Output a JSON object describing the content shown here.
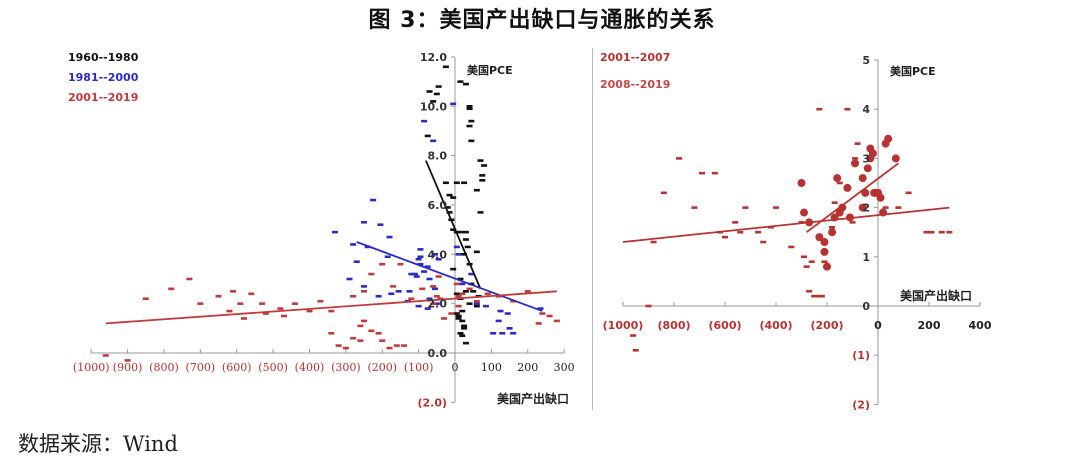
{
  "title": "图 3：美国产出缺口与通胀的关系",
  "source": "数据来源：Wind",
  "colors": {
    "black_series": "#111111",
    "blue_series": "#2b2bc8",
    "red_series": "#c23b3b",
    "red_tick_labels": "#b83232",
    "axis": "#999999"
  },
  "chart_data": [
    {
      "type": "scatter",
      "title": "",
      "xlabel": "美国产出缺口",
      "ylabel": "美国PCE",
      "xlim": [
        -1000,
        300
      ],
      "ylim": [
        -2.0,
        12.0
      ],
      "x_ticks": [
        "(1000)",
        "(900)",
        "(800)",
        "(700)",
        "(600)",
        "(500)",
        "(400)",
        "(300)",
        "(200)",
        "(100)",
        "0",
        "100",
        "200",
        "300"
      ],
      "y_ticks": [
        "12.0",
        "10.0",
        "8.0",
        "6.0",
        "4.0",
        "2.0",
        "0.0",
        "(2.0)"
      ],
      "legend_position": "top-left",
      "series": [
        {
          "name": "1960--1980",
          "color": "#111111",
          "marker": "dash",
          "points": [
            [
              -25,
              11.6
            ],
            [
              30,
              10.9
            ],
            [
              15,
              11.0
            ],
            [
              -45,
              10.8
            ],
            [
              -70,
              10.6
            ],
            [
              -50,
              10.5
            ],
            [
              -60,
              10.2
            ],
            [
              40,
              10.0
            ],
            [
              40,
              9.9
            ],
            [
              45,
              9.4
            ],
            [
              40,
              9.2
            ],
            [
              45,
              8.6
            ],
            [
              -75,
              8.8
            ],
            [
              70,
              7.8
            ],
            [
              80,
              7.6
            ],
            [
              75,
              7.2
            ],
            [
              75,
              7.0
            ],
            [
              5,
              6.9
            ],
            [
              -25,
              6.9
            ],
            [
              25,
              6.9
            ],
            [
              60,
              6.6
            ],
            [
              -15,
              6.4
            ],
            [
              -5,
              6.3
            ],
            [
              -20,
              5.9
            ],
            [
              -15,
              5.7
            ],
            [
              70,
              5.7
            ],
            [
              -10,
              5.4
            ],
            [
              -5,
              5.0
            ],
            [
              5,
              4.9
            ],
            [
              15,
              4.9
            ],
            [
              30,
              4.9
            ],
            [
              30,
              4.6
            ],
            [
              35,
              4.3
            ],
            [
              25,
              4.0
            ],
            [
              60,
              4.1
            ],
            [
              40,
              3.6
            ],
            [
              45,
              2.8
            ],
            [
              30,
              2.5
            ],
            [
              5,
              2.4
            ],
            [
              15,
              2.2
            ],
            [
              40,
              2.0
            ],
            [
              60,
              1.9
            ],
            [
              10,
              1.5
            ],
            [
              20,
              1.3
            ],
            [
              25,
              1.1
            ],
            [
              15,
              0.8
            ],
            [
              20,
              0.7
            ],
            [
              25,
              1.0
            ],
            [
              10,
              1.4
            ],
            [
              5,
              1.6
            ],
            [
              20,
              1.7
            ],
            [
              30,
              0.4
            ],
            [
              50,
              2.5
            ],
            [
              65,
              2.3
            ],
            [
              15,
              3.0
            ],
            [
              -5,
              3.4
            ]
          ],
          "trendline": {
            "x1": -80,
            "y1": 7.8,
            "x2": 70,
            "y2": 2.6
          }
        },
        {
          "name": "1981--2000",
          "color": "#2b2bc8",
          "marker": "dash",
          "points": [
            [
              -5,
              10.1
            ],
            [
              -85,
              9.4
            ],
            [
              -60,
              8.6
            ],
            [
              -225,
              6.2
            ],
            [
              -250,
              5.3
            ],
            [
              -205,
              5.2
            ],
            [
              -330,
              4.9
            ],
            [
              -180,
              4.7
            ],
            [
              -280,
              4.4
            ],
            [
              -240,
              4.3
            ],
            [
              -185,
              3.9
            ],
            [
              -270,
              3.7
            ],
            [
              -100,
              3.8
            ],
            [
              -55,
              4.0
            ],
            [
              -45,
              3.8
            ],
            [
              -95,
              3.6
            ],
            [
              -75,
              3.5
            ],
            [
              -110,
              3.2
            ],
            [
              -120,
              3.2
            ],
            [
              -105,
              3.1
            ],
            [
              -290,
              3.0
            ],
            [
              -250,
              2.7
            ],
            [
              -175,
              2.4
            ],
            [
              -155,
              2.5
            ],
            [
              -125,
              2.5
            ],
            [
              -210,
              2.3
            ],
            [
              -130,
              2.1
            ],
            [
              -100,
              1.9
            ],
            [
              -75,
              1.8
            ],
            [
              -50,
              2.0
            ],
            [
              -70,
              2.2
            ],
            [
              5,
              4.3
            ],
            [
              10,
              4.0
            ],
            [
              60,
              2.0
            ],
            [
              85,
              1.9
            ],
            [
              125,
              1.7
            ],
            [
              145,
              1.6
            ],
            [
              120,
              1.3
            ],
            [
              150,
              1.0
            ],
            [
              160,
              0.8
            ],
            [
              130,
              0.8
            ],
            [
              105,
              0.8
            ],
            [
              235,
              1.8
            ],
            [
              -95,
              4.2
            ],
            [
              -95,
              3.9
            ],
            [
              -85,
              3.3
            ],
            [
              -70,
              3.0
            ],
            [
              -55,
              2.6
            ],
            [
              20,
              2.8
            ],
            [
              45,
              3.2
            ]
          ],
          "trendline": {
            "x1": -270,
            "y1": 4.5,
            "x2": 240,
            "y2": 1.7
          }
        },
        {
          "name": "2001--2019",
          "color": "#c23b3b",
          "marker": "dash",
          "points": [
            [
              -960,
              -0.1
            ],
            [
              -900,
              -0.3
            ],
            [
              -780,
              2.6
            ],
            [
              -850,
              2.2
            ],
            [
              -730,
              3.0
            ],
            [
              -700,
              2.0
            ],
            [
              -650,
              2.3
            ],
            [
              -610,
              2.5
            ],
            [
              -560,
              2.4
            ],
            [
              -590,
              2.0
            ],
            [
              -620,
              1.7
            ],
            [
              -580,
              1.4
            ],
            [
              -530,
              2.0
            ],
            [
              -520,
              1.6
            ],
            [
              -480,
              1.8
            ],
            [
              -470,
              1.5
            ],
            [
              -440,
              2.0
            ],
            [
              -400,
              1.7
            ],
            [
              -370,
              2.1
            ],
            [
              -340,
              1.7
            ],
            [
              -280,
              2.3
            ],
            [
              -250,
              2.5
            ],
            [
              -230,
              3.2
            ],
            [
              -200,
              3.6
            ],
            [
              -150,
              3.6
            ],
            [
              -170,
              2.7
            ],
            [
              -120,
              2.2
            ],
            [
              -90,
              2.6
            ],
            [
              -60,
              2.7
            ],
            [
              -45,
              3.1
            ],
            [
              -250,
              1.3
            ],
            [
              -230,
              0.9
            ],
            [
              -210,
              0.8
            ],
            [
              -280,
              0.6
            ],
            [
              -260,
              0.5
            ],
            [
              -200,
              0.5
            ],
            [
              -160,
              0.3
            ],
            [
              -140,
              0.3
            ],
            [
              -180,
              0.2
            ],
            [
              -300,
              0.2
            ],
            [
              -260,
              1.1
            ],
            [
              -340,
              0.8
            ],
            [
              -320,
              0.3
            ],
            [
              -60,
              2.0
            ],
            [
              -40,
              2.2
            ],
            [
              10,
              2.3
            ],
            [
              20,
              2.4
            ],
            [
              5,
              2.8
            ],
            [
              40,
              2.6
            ],
            [
              60,
              2.1
            ],
            [
              90,
              2.4
            ],
            [
              120,
              2.3
            ],
            [
              160,
              2.1
            ],
            [
              200,
              2.5
            ],
            [
              240,
              1.6
            ],
            [
              260,
              1.5
            ],
            [
              280,
              1.3
            ],
            [
              230,
              1.2
            ],
            [
              10,
              1.9
            ],
            [
              -10,
              1.6
            ],
            [
              -30,
              1.4
            ],
            [
              -50,
              2.3
            ]
          ],
          "trendline": {
            "x1": -960,
            "y1": 1.2,
            "x2": 280,
            "y2": 2.5
          }
        }
      ]
    },
    {
      "type": "scatter",
      "title": "",
      "xlabel": "美国产出缺口",
      "ylabel": "美国PCE",
      "xlim": [
        -1000,
        400
      ],
      "ylim": [
        -2,
        5
      ],
      "x_ticks": [
        "(1000)",
        "(800)",
        "(600)",
        "(400)",
        "(200)",
        "0",
        "200",
        "400"
      ],
      "y_ticks": [
        "5",
        "4",
        "3",
        "2",
        "1",
        "0",
        "(1)",
        "(2)"
      ],
      "legend_position": "top-left",
      "series": [
        {
          "name": "2001--2007",
          "color": "#b83232",
          "marker": "dash",
          "points": [
            [
              -960,
              -0.6
            ],
            [
              -950,
              -0.9
            ],
            [
              -900,
              0.0
            ],
            [
              -880,
              1.3
            ],
            [
              -840,
              2.3
            ],
            [
              -780,
              3.0
            ],
            [
              -720,
              2.0
            ],
            [
              -690,
              2.7
            ],
            [
              -640,
              2.7
            ],
            [
              -620,
              1.5
            ],
            [
              -600,
              1.4
            ],
            [
              -560,
              1.7
            ],
            [
              -540,
              1.5
            ],
            [
              -520,
              2.0
            ],
            [
              -470,
              1.5
            ],
            [
              -450,
              1.3
            ],
            [
              -420,
              1.6
            ],
            [
              -400,
              2.0
            ],
            [
              -340,
              1.2
            ],
            [
              -290,
              1.0
            ],
            [
              -280,
              0.8
            ],
            [
              -270,
              0.3
            ],
            [
              -260,
              0.9
            ],
            [
              -250,
              0.2
            ],
            [
              -230,
              0.2
            ],
            [
              -220,
              0.2
            ],
            [
              -210,
              0.9
            ],
            [
              -300,
              1.7
            ],
            [
              -180,
              1.6
            ],
            [
              -150,
              2.5
            ],
            [
              -90,
              3.0
            ],
            [
              -80,
              3.3
            ],
            [
              -120,
              4.0
            ],
            [
              -230,
              4.0
            ],
            [
              -170,
              2.1
            ],
            [
              -100,
              1.7
            ],
            [
              30,
              2.0
            ],
            [
              80,
              2.0
            ],
            [
              120,
              2.3
            ],
            [
              190,
              1.5
            ],
            [
              210,
              1.5
            ],
            [
              250,
              1.5
            ],
            [
              280,
              1.5
            ]
          ],
          "trendline": {
            "x1": -1000,
            "y1": 1.3,
            "x2": 280,
            "y2": 2.0
          }
        },
        {
          "name": "2008--2019",
          "color": "#b83232",
          "marker": "dot",
          "points": [
            [
              -300,
              2.5
            ],
            [
              -290,
              1.9
            ],
            [
              -270,
              1.7
            ],
            [
              -230,
              1.4
            ],
            [
              -210,
              1.3
            ],
            [
              -210,
              1.1
            ],
            [
              -200,
              0.8
            ],
            [
              -180,
              1.5
            ],
            [
              -170,
              1.8
            ],
            [
              -160,
              2.6
            ],
            [
              -150,
              1.9
            ],
            [
              -140,
              2.0
            ],
            [
              -120,
              2.4
            ],
            [
              -110,
              1.8
            ],
            [
              -90,
              2.9
            ],
            [
              -60,
              2.6
            ],
            [
              -50,
              2.3
            ],
            [
              -40,
              2.8
            ],
            [
              -30,
              3.2
            ],
            [
              -20,
              3.1
            ],
            [
              -15,
              2.3
            ],
            [
              -10,
              2.3
            ],
            [
              0,
              2.3
            ],
            [
              10,
              2.2
            ],
            [
              20,
              1.9
            ],
            [
              30,
              3.3
            ],
            [
              40,
              3.4
            ],
            [
              70,
              3.0
            ],
            [
              -30,
              3.0
            ],
            [
              -60,
              2.0
            ]
          ],
          "trendline": {
            "x1": -280,
            "y1": 1.5,
            "x2": 80,
            "y2": 2.9
          }
        }
      ]
    }
  ],
  "left_chart": {
    "legend": [
      "1960--1980",
      "1981--2000",
      "2001--2019"
    ],
    "y_axis_title": "美国PCE",
    "x_axis_title": "美国产出缺口"
  },
  "right_chart": {
    "legend": [
      "2001--2007",
      "2008--2019"
    ],
    "y_axis_title": "美国PCE",
    "x_axis_title": "美国产出缺口"
  }
}
